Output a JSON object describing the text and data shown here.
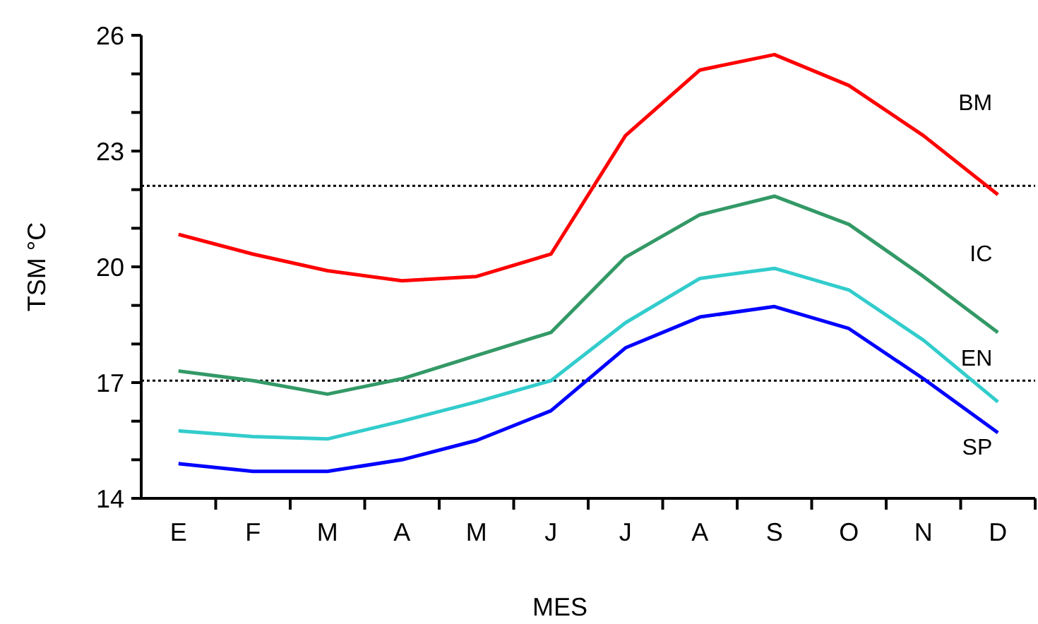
{
  "chart_data": {
    "type": "line",
    "xlabel": "MES",
    "ylabel": "TSM °C",
    "categories": [
      "E",
      "F",
      "M",
      "A",
      "M",
      "J",
      "J",
      "A",
      "S",
      "O",
      "N",
      "D"
    ],
    "ylim": [
      14,
      26
    ],
    "yticks": [
      14,
      {
        "value": 15,
        "label": null
      },
      {
        "value": 16,
        "label": null
      },
      17,
      {
        "value": 18,
        "label": null
      },
      {
        "value": 19,
        "label": null
      },
      20,
      {
        "value": 21,
        "label": null
      },
      {
        "value": 22,
        "label": null
      },
      23,
      {
        "value": 24,
        "label": null
      },
      {
        "value": 25,
        "label": null
      },
      26
    ],
    "grid": false,
    "marker": "none",
    "line_style": "solid",
    "series": [
      {
        "name": "BM",
        "color": "#ff0000",
        "values": [
          20.84,
          20.33,
          19.9,
          19.64,
          19.75,
          20.33,
          23.4,
          25.1,
          25.5,
          24.7,
          23.4,
          21.87
        ]
      },
      {
        "name": "IC",
        "color": "#339966",
        "values": [
          17.3,
          17.05,
          16.7,
          17.1,
          17.7,
          18.3,
          20.25,
          21.35,
          21.83,
          21.1,
          19.75,
          18.3
        ]
      },
      {
        "name": "EN",
        "color": "#33cccc",
        "values": [
          15.75,
          15.6,
          15.54,
          16.0,
          16.5,
          17.05,
          18.55,
          19.7,
          19.96,
          19.4,
          18.1,
          16.5
        ]
      },
      {
        "name": "SP",
        "color": "#0000ff",
        "values": [
          14.9,
          14.7,
          14.7,
          15.0,
          15.5,
          16.27,
          17.9,
          18.7,
          18.97,
          18.4,
          17.1,
          15.7
        ]
      }
    ],
    "ref_lines": [
      {
        "axis": "y",
        "value": 22.1,
        "color": "#000000",
        "line_style": "dotted"
      },
      {
        "axis": "y",
        "value": 17.05,
        "color": "#000000",
        "line_style": "dotted"
      }
    ]
  }
}
